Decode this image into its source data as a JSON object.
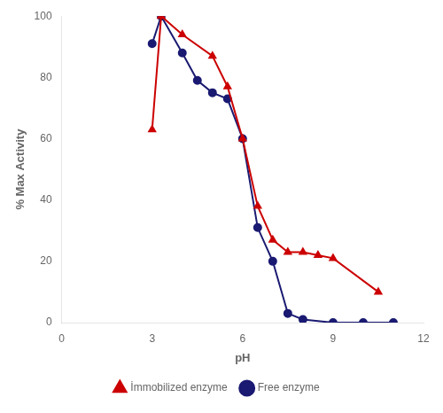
{
  "chart_data": {
    "type": "line",
    "xlabel": "pH",
    "ylabel": "% Max Activity",
    "series": [
      {
        "name": "İmmobilized enzyme",
        "color": "#cc0000",
        "marker": "triangle",
        "x": [
          3.0,
          3.3,
          4.0,
          5.0,
          5.5,
          6.0,
          6.5,
          7.0,
          7.5,
          8.0,
          8.5,
          9.0,
          10.5
        ],
        "values": [
          63,
          100,
          94,
          87,
          77,
          60,
          38,
          27,
          23,
          23,
          22,
          21,
          10
        ]
      },
      {
        "name": "Free enzyme",
        "color": "#1a1a72",
        "marker": "circle",
        "x": [
          3.0,
          3.3,
          4.0,
          4.5,
          5.0,
          5.5,
          6.0,
          6.5,
          7.0,
          7.5,
          8.0,
          9.0,
          10.0,
          11.0
        ],
        "values": [
          91,
          100,
          88,
          79,
          75,
          73,
          60,
          31,
          20,
          3,
          1,
          0,
          0,
          0
        ]
      }
    ],
    "xlim": [
      0,
      12
    ],
    "xticks": [
      0,
      3,
      6,
      9,
      12
    ],
    "ylim": [
      0,
      100
    ],
    "yticks": [
      0,
      20,
      40,
      60,
      80,
      100
    ],
    "grid": false,
    "legend": "bottom"
  }
}
